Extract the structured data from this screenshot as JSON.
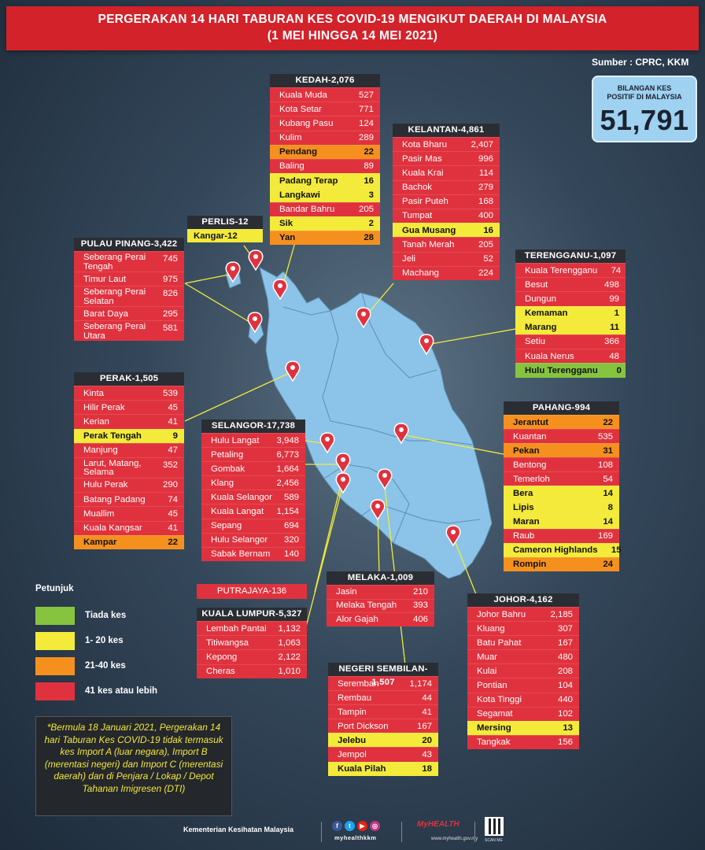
{
  "header": {
    "line1": "PERGERAKAN 14 HARI TABURAN KES COVID-19 MENGIKUT DAERAH DI MALAYSIA",
    "line2": "(1 MEI HINGGA 14 MEI 2021)"
  },
  "source": "Sumber : CPRC, KKM",
  "total": {
    "label_line1": "BILANGAN KES",
    "label_line2": "POSITIF DI MALAYSIA",
    "value": "51,791"
  },
  "colors": {
    "red": "#e0323e",
    "yellow": "#f3ea3a",
    "orange": "#f5901f",
    "green": "#86c440",
    "header": "#d3222a",
    "map": "#8cc3e8"
  },
  "states": {
    "kedah": {
      "title": "KEDAH-2,076",
      "rows": [
        {
          "name": "Kuala Muda",
          "value": "527",
          "cat": "r"
        },
        {
          "name": "Kota Setar",
          "value": "771",
          "cat": "r"
        },
        {
          "name": "Kubang Pasu",
          "value": "124",
          "cat": "r"
        },
        {
          "name": "Kulim",
          "value": "289",
          "cat": "r"
        },
        {
          "name": "Pendang",
          "value": "22",
          "cat": "o"
        },
        {
          "name": "Baling",
          "value": "89",
          "cat": "r"
        },
        {
          "name": "Padang Terap",
          "value": "16",
          "cat": "y"
        },
        {
          "name": "Langkawi",
          "value": "3",
          "cat": "y"
        },
        {
          "name": "Bandar Bahru",
          "value": "205",
          "cat": "r"
        },
        {
          "name": "Sik",
          "value": "2",
          "cat": "y"
        },
        {
          "name": "Yan",
          "value": "28",
          "cat": "o"
        }
      ]
    },
    "kelantan": {
      "title": "KELANTAN-4,861",
      "rows": [
        {
          "name": "Kota Bharu",
          "value": "2,407",
          "cat": "r"
        },
        {
          "name": "Pasir Mas",
          "value": "996",
          "cat": "r"
        },
        {
          "name": "Kuala Krai",
          "value": "114",
          "cat": "r"
        },
        {
          "name": "Bachok",
          "value": "279",
          "cat": "r"
        },
        {
          "name": "Pasir Puteh",
          "value": "168",
          "cat": "r"
        },
        {
          "name": "Tumpat",
          "value": "400",
          "cat": "r"
        },
        {
          "name": "Gua Musang",
          "value": "16",
          "cat": "y"
        },
        {
          "name": "Tanah Merah",
          "value": "205",
          "cat": "r"
        },
        {
          "name": "Jeli",
          "value": "52",
          "cat": "r"
        },
        {
          "name": "Machang",
          "value": "224",
          "cat": "r"
        }
      ]
    },
    "perlis": {
      "title": "PERLIS-12",
      "rows": [
        {
          "name": "Kangar-12",
          "value": "",
          "cat": "y"
        }
      ]
    },
    "penang": {
      "title": "PULAU PINANG-3,422",
      "rows": [
        {
          "name": "Seberang Perai Tengah",
          "value": "745",
          "cat": "r"
        },
        {
          "name": "Timur Laut",
          "value": "975",
          "cat": "r"
        },
        {
          "name": "Seberang Perai Selatan",
          "value": "826",
          "cat": "r"
        },
        {
          "name": "Barat Daya",
          "value": "295",
          "cat": "r"
        },
        {
          "name": "Seberang Perai Utara",
          "value": "581",
          "cat": "r"
        }
      ]
    },
    "terengganu": {
      "title": "TERENGGANU-1,097",
      "rows": [
        {
          "name": "Kuala Terengganu",
          "value": "74",
          "cat": "r"
        },
        {
          "name": "Besut",
          "value": "498",
          "cat": "r"
        },
        {
          "name": "Dungun",
          "value": "99",
          "cat": "r"
        },
        {
          "name": "Kemaman",
          "value": "1",
          "cat": "y"
        },
        {
          "name": "Marang",
          "value": "11",
          "cat": "y"
        },
        {
          "name": "Setiu",
          "value": "366",
          "cat": "r"
        },
        {
          "name": "Kuala Nerus",
          "value": "48",
          "cat": "r"
        },
        {
          "name": "Hulu Terengganu",
          "value": "0",
          "cat": "g"
        }
      ]
    },
    "perak": {
      "title": "PERAK-1,505",
      "rows": [
        {
          "name": "Kinta",
          "value": "539",
          "cat": "r"
        },
        {
          "name": "Hilir Perak",
          "value": "45",
          "cat": "r"
        },
        {
          "name": "Kerian",
          "value": "41",
          "cat": "r"
        },
        {
          "name": "Perak Tengah",
          "value": "9",
          "cat": "y"
        },
        {
          "name": "Manjung",
          "value": "47",
          "cat": "r"
        },
        {
          "name": "Larut, Matang, Selama",
          "value": "352",
          "cat": "r"
        },
        {
          "name": "Hulu Perak",
          "value": "290",
          "cat": "r"
        },
        {
          "name": "Batang Padang",
          "value": "74",
          "cat": "r"
        },
        {
          "name": "Muallim",
          "value": "45",
          "cat": "r"
        },
        {
          "name": "Kuala Kangsar",
          "value": "41",
          "cat": "r"
        },
        {
          "name": "Kampar",
          "value": "22",
          "cat": "o"
        }
      ]
    },
    "selangor": {
      "title": "SELANGOR-17,738",
      "rows": [
        {
          "name": "Hulu Langat",
          "value": "3,948",
          "cat": "r"
        },
        {
          "name": "Petaling",
          "value": "6,773",
          "cat": "r"
        },
        {
          "name": "Gombak",
          "value": "1,664",
          "cat": "r"
        },
        {
          "name": "Klang",
          "value": "2,456",
          "cat": "r"
        },
        {
          "name": "Kuala Selangor",
          "value": "589",
          "cat": "r"
        },
        {
          "name": "Kuala Langat",
          "value": "1,154",
          "cat": "r"
        },
        {
          "name": "Sepang",
          "value": "694",
          "cat": "r"
        },
        {
          "name": "Hulu Selangor",
          "value": "320",
          "cat": "r"
        },
        {
          "name": "Sabak Bernam",
          "value": "140",
          "cat": "r"
        }
      ]
    },
    "pahang": {
      "title": "PAHANG-994",
      "rows": [
        {
          "name": "Jerantut",
          "value": "22",
          "cat": "o"
        },
        {
          "name": "Kuantan",
          "value": "535",
          "cat": "r"
        },
        {
          "name": "Pekan",
          "value": "31",
          "cat": "o"
        },
        {
          "name": "Bentong",
          "value": "108",
          "cat": "r"
        },
        {
          "name": "Temerloh",
          "value": "54",
          "cat": "r"
        },
        {
          "name": "Bera",
          "value": "14",
          "cat": "y"
        },
        {
          "name": "Lipis",
          "value": "8",
          "cat": "y"
        },
        {
          "name": "Maran",
          "value": "14",
          "cat": "y"
        },
        {
          "name": "Raub",
          "value": "169",
          "cat": "r"
        },
        {
          "name": "Cameron Highlands",
          "value": "15",
          "cat": "y"
        },
        {
          "name": "Rompin",
          "value": "24",
          "cat": "o"
        }
      ]
    },
    "putrajaya": {
      "title": "PUTRAJAYA-136"
    },
    "kl": {
      "title": "KUALA LUMPUR-5,327",
      "rows": [
        {
          "name": "Lembah Pantai",
          "value": "1,132",
          "cat": "r"
        },
        {
          "name": "Titiwangsa",
          "value": "1,063",
          "cat": "r"
        },
        {
          "name": "Kepong",
          "value": "2,122",
          "cat": "r"
        },
        {
          "name": "Cheras",
          "value": "1,010",
          "cat": "r"
        }
      ]
    },
    "melaka": {
      "title": "MELAKA-1,009",
      "rows": [
        {
          "name": "Jasin",
          "value": "210",
          "cat": "r"
        },
        {
          "name": "Melaka Tengah",
          "value": "393",
          "cat": "r"
        },
        {
          "name": "Alor Gajah",
          "value": "406",
          "cat": "r"
        }
      ]
    },
    "johor": {
      "title": "JOHOR-4,162",
      "rows": [
        {
          "name": "Johor Bahru",
          "value": "2,185",
          "cat": "r"
        },
        {
          "name": "Kluang",
          "value": "307",
          "cat": "r"
        },
        {
          "name": "Batu Pahat",
          "value": "167",
          "cat": "r"
        },
        {
          "name": "Muar",
          "value": "480",
          "cat": "r"
        },
        {
          "name": "Kulai",
          "value": "208",
          "cat": "r"
        },
        {
          "name": "Pontian",
          "value": "104",
          "cat": "r"
        },
        {
          "name": "Kota Tinggi",
          "value": "440",
          "cat": "r"
        },
        {
          "name": "Segamat",
          "value": "102",
          "cat": "r"
        },
        {
          "name": "Mersing",
          "value": "13",
          "cat": "y"
        },
        {
          "name": "Tangkak",
          "value": "156",
          "cat": "r"
        }
      ]
    },
    "ns": {
      "title": "NEGERI SEMBILAN-1,507",
      "rows": [
        {
          "name": "Seremban",
          "value": "1,174",
          "cat": "r"
        },
        {
          "name": "Rembau",
          "value": "44",
          "cat": "r"
        },
        {
          "name": "Tampin",
          "value": "41",
          "cat": "r"
        },
        {
          "name": "Port Dickson",
          "value": "167",
          "cat": "r"
        },
        {
          "name": "Jelebu",
          "value": "20",
          "cat": "y"
        },
        {
          "name": "Jempol",
          "value": "43",
          "cat": "r"
        },
        {
          "name": "Kuala Pilah",
          "value": "18",
          "cat": "y"
        }
      ]
    }
  },
  "legend": {
    "title": "Petunjuk",
    "items": [
      {
        "label": "Tiada kes",
        "color": "#86c440"
      },
      {
        "label": "1- 20 kes",
        "color": "#f3ea3a"
      },
      {
        "label": "21-40 kes",
        "color": "#f5901f"
      },
      {
        "label": "41 kes atau lebih",
        "color": "#e0323e"
      }
    ]
  },
  "note": "*Bermula 18 Januari 2021, Pergerakan 14 hari Taburan Kes COVID-19 tidak termasuk kes Import A (luar negara), Import B (merentasi negeri) dan Import C (merentasi daerah) dan di Penjara / Lokap / Depot Tahanan Imigresen (DTI)",
  "footer": {
    "ministry": "Kementerian Kesihatan Malaysia",
    "social_handle": "myhealthkkm",
    "brand": "MyHEALTH",
    "brand_url": "www.myhealth.gov.my",
    "qr_label": "SCAN ME"
  }
}
